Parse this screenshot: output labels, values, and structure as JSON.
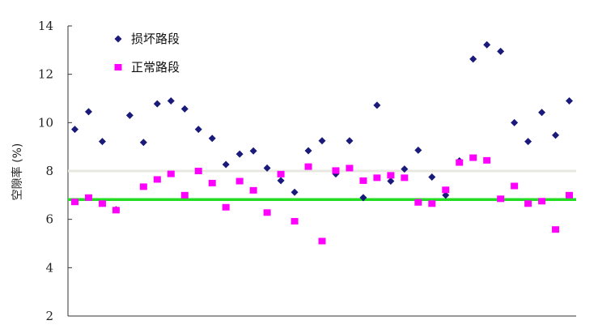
{
  "chart_data": {
    "type": "scatter",
    "ylabel": "空隙率 (%)",
    "ylim": [
      2,
      14
    ],
    "yticks": [
      2,
      4,
      6,
      8,
      10,
      12,
      14
    ],
    "x": [
      1,
      2,
      3,
      4,
      5,
      6,
      7,
      8,
      9,
      10,
      11,
      12,
      13,
      14,
      15,
      16,
      17,
      18,
      19,
      20,
      21,
      22,
      23,
      24,
      25,
      26,
      27,
      28,
      29,
      30,
      31,
      32,
      33,
      34,
      35,
      36,
      37
    ],
    "series": [
      {
        "name": "损坏路段",
        "color": "#1a1a7a",
        "marker": "diamond",
        "values": [
          9.72,
          10.45,
          9.22,
          6.4,
          10.3,
          9.18,
          10.78,
          10.9,
          10.57,
          9.72,
          9.35,
          8.27,
          8.7,
          8.83,
          8.12,
          7.6,
          7.12,
          8.84,
          9.25,
          7.88,
          9.25,
          6.9,
          10.72,
          7.58,
          8.08,
          8.86,
          7.75,
          7.0,
          8.42,
          12.63,
          13.22,
          12.95,
          10.0,
          9.22,
          10.42,
          9.48,
          10.9
        ]
      },
      {
        "name": "正常路段",
        "color": "#ff00ff",
        "marker": "square",
        "values": [
          6.72,
          6.9,
          6.65,
          6.38,
          null,
          7.35,
          7.65,
          7.88,
          7.0,
          8.0,
          7.5,
          6.5,
          7.58,
          7.2,
          6.28,
          7.87,
          5.92,
          8.18,
          5.1,
          8.02,
          8.12,
          7.6,
          7.72,
          7.82,
          7.72,
          6.7,
          6.65,
          7.22,
          8.35,
          8.55,
          8.44,
          6.85,
          7.38,
          6.65,
          6.75,
          5.58,
          7.0
        ]
      }
    ],
    "reference_lines": [
      {
        "value": 8.0,
        "color": "#e8e8e0"
      },
      {
        "value": 6.82,
        "color": "#22dd22"
      }
    ],
    "legend_position": "top-left",
    "grid": false
  }
}
